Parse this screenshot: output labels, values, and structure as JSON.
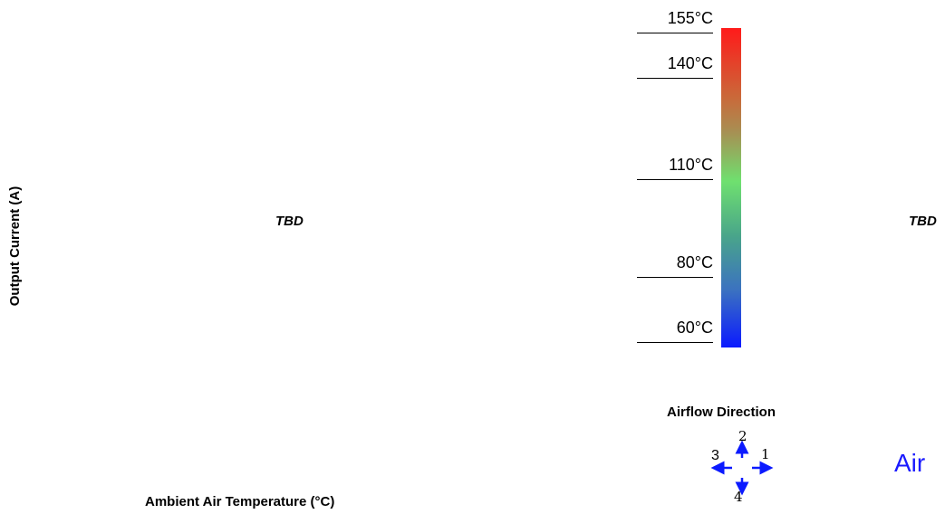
{
  "axes": {
    "y_label": "Output Current (A)",
    "x_label": "Ambient Air Temperature (°C)"
  },
  "placeholders": {
    "left": "TBD",
    "right": "TBD"
  },
  "temperature_scale": {
    "ticks": [
      "155°C",
      "140°C",
      "110°C",
      "80°C",
      "60°C"
    ],
    "colors": [
      "#ff1a1a",
      "#a98d52",
      "#6fe06f",
      "#3b72c0",
      "#0b1aff"
    ]
  },
  "airflow": {
    "title": "Airflow Direction",
    "arrow_color": "#0b1aff",
    "directions": {
      "right": "1",
      "up": "2",
      "left": "3",
      "down": "4"
    }
  },
  "air_label": "Air"
}
